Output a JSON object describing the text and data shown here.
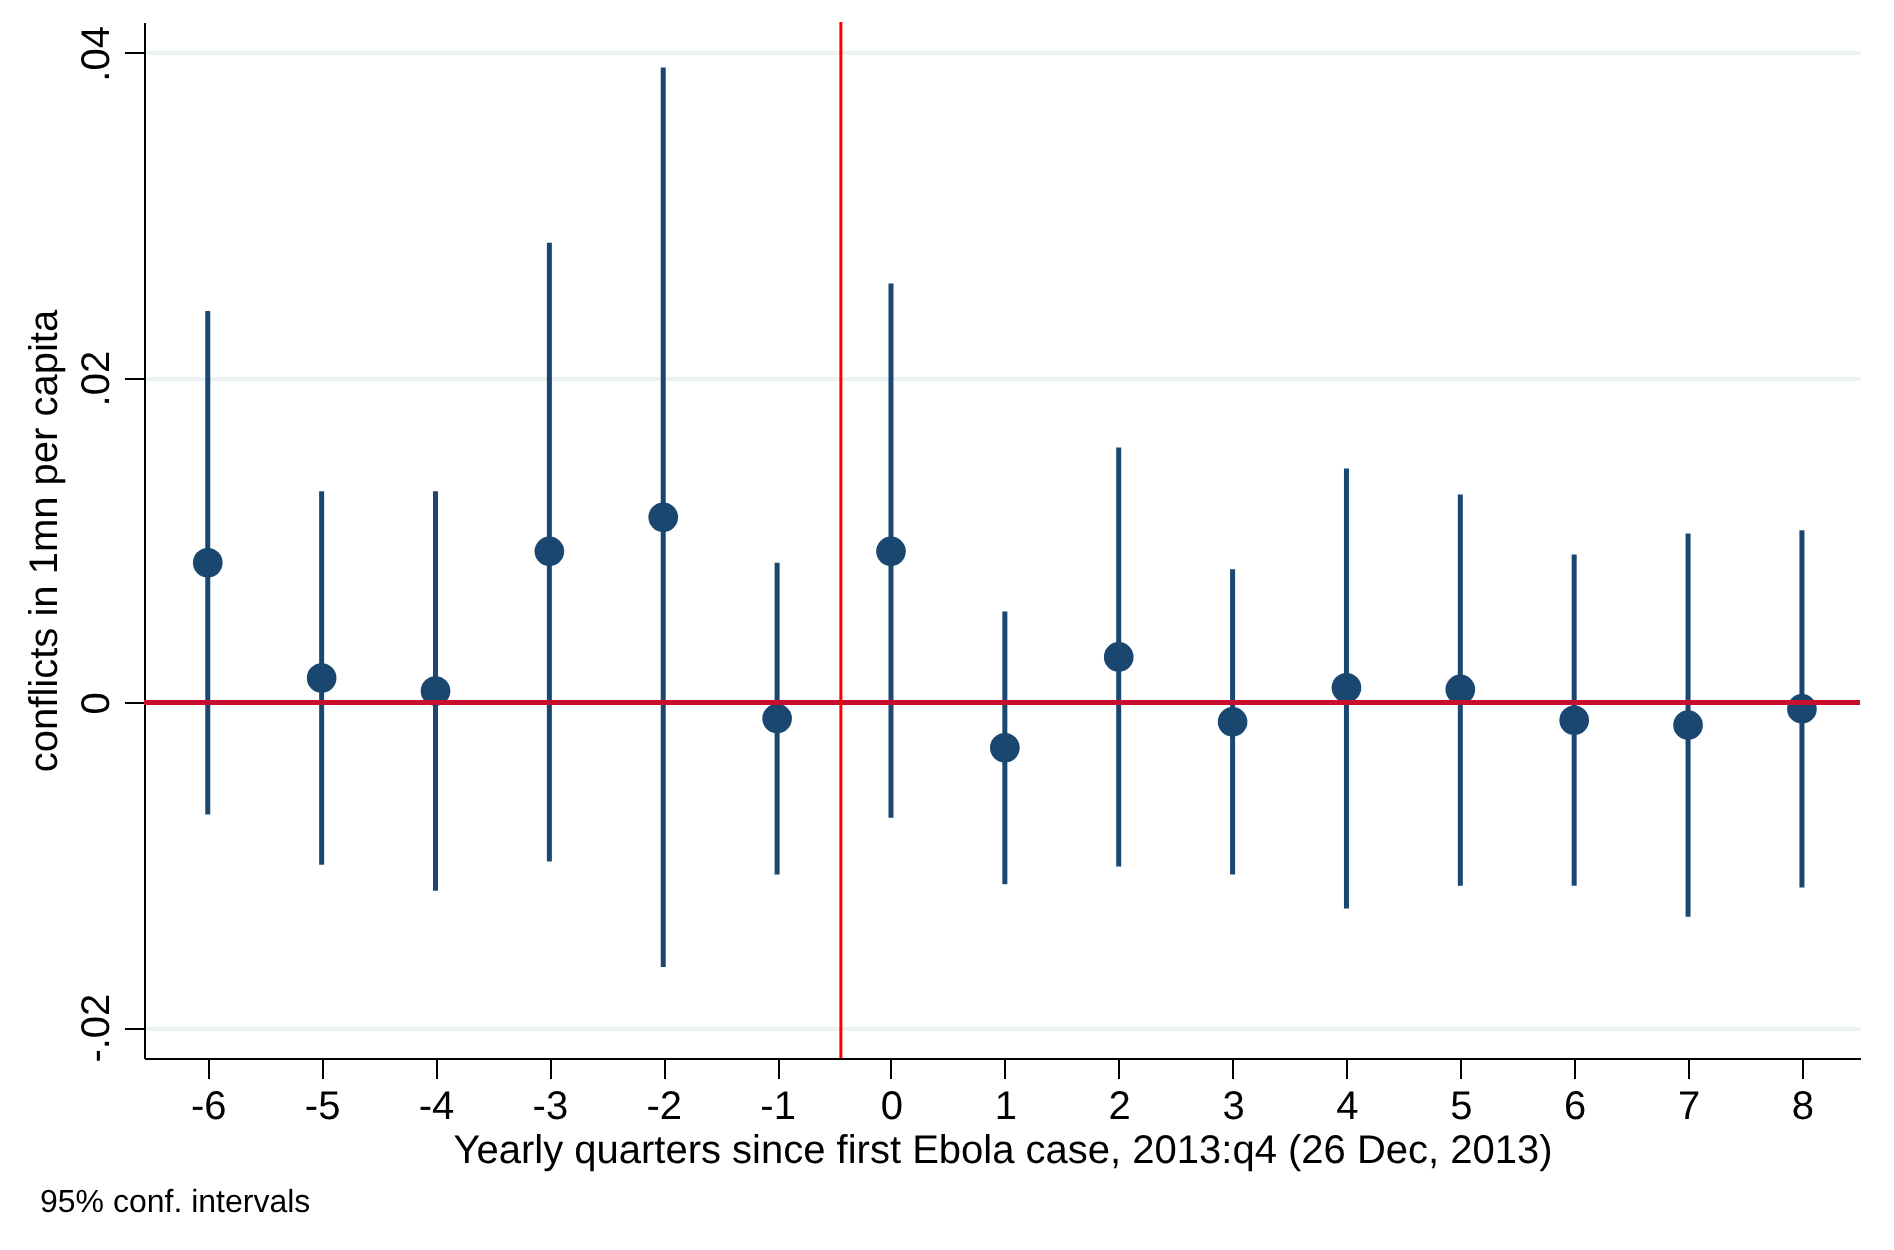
{
  "chart_data": {
    "type": "scatter",
    "xlabel": "Yearly quarters since first Ebola case, 2013:q4 (26 Dec, 2013)",
    "ylabel": "conflicts in 1mn per capita",
    "x": [
      -6,
      -5,
      -4,
      -3,
      -2,
      -1,
      0,
      1,
      2,
      3,
      4,
      5,
      6,
      7,
      8
    ],
    "series": [
      {
        "color": "#1a476f",
        "values": [
          0.0086,
          0.0015,
          0.0007,
          0.0093,
          0.0114,
          -0.001,
          0.0093,
          -0.0028,
          0.0028,
          -0.0012,
          0.0009,
          0.0008,
          -0.0011,
          -0.0014,
          -0.0004
        ],
        "errors": [
          [
            -0.0069,
            0.0241
          ],
          [
            -0.01,
            0.013
          ],
          [
            -0.0116,
            0.013
          ],
          [
            -0.0098,
            0.0283
          ],
          [
            -0.0163,
            0.0391
          ],
          [
            -0.0106,
            0.0086
          ],
          [
            -0.0071,
            0.0258
          ],
          [
            -0.0112,
            0.0056
          ],
          [
            -0.0101,
            0.0157
          ],
          [
            -0.0106,
            0.0082
          ],
          [
            -0.0127,
            0.0144
          ],
          [
            -0.0113,
            0.0128
          ],
          [
            -0.0113,
            0.0091
          ],
          [
            -0.0132,
            0.0104
          ],
          [
            -0.0114,
            0.0106
          ]
        ]
      }
    ],
    "xlim": [
      -6.56,
      8.51
    ],
    "xticks": [
      -6,
      -5,
      -4,
      -3,
      -2,
      -1,
      0,
      1,
      2,
      3,
      4,
      5,
      6,
      7,
      8
    ],
    "ylim": [
      -0.0219,
      0.0419
    ],
    "yticks": [
      {
        "value": -0.02,
        "label": "-.02"
      },
      {
        "value": 0,
        "label": "0"
      },
      {
        "value": 0.02,
        "label": ".02"
      },
      {
        "value": 0.04,
        "label": ".04"
      }
    ],
    "grid": "y",
    "marker": "circle",
    "ref_lines": [
      {
        "axis": "y",
        "value": 0,
        "color": "#c8102e"
      },
      {
        "axis": "x",
        "value": -0.44,
        "color": "#ff0000"
      }
    ],
    "annotations": [
      "95% conf. intervals"
    ]
  }
}
